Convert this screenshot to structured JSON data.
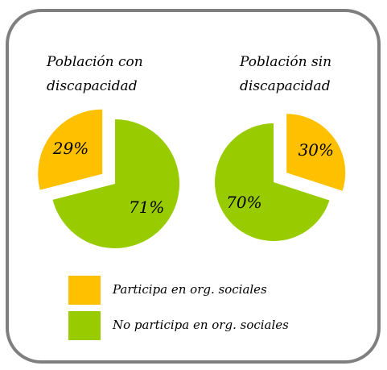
{
  "chart_data": [
    {
      "type": "pie",
      "title": "Población con discapacidad",
      "categories": [
        "Participa en org. sociales",
        "No participa en org. sociales"
      ],
      "values": [
        29,
        71
      ],
      "value_labels": [
        "29%",
        "71%"
      ],
      "colors": [
        "#ffc000",
        "#99cc00"
      ],
      "counterclock": true
    },
    {
      "type": "pie",
      "title": "Población sin discapacidad",
      "categories": [
        "Participa en org. sociales",
        "No participa en org. sociales"
      ],
      "values": [
        30,
        70
      ],
      "value_labels": [
        "30%",
        "70%"
      ],
      "colors": [
        "#ffc000",
        "#99cc00"
      ],
      "counterclock": false
    }
  ]
}
